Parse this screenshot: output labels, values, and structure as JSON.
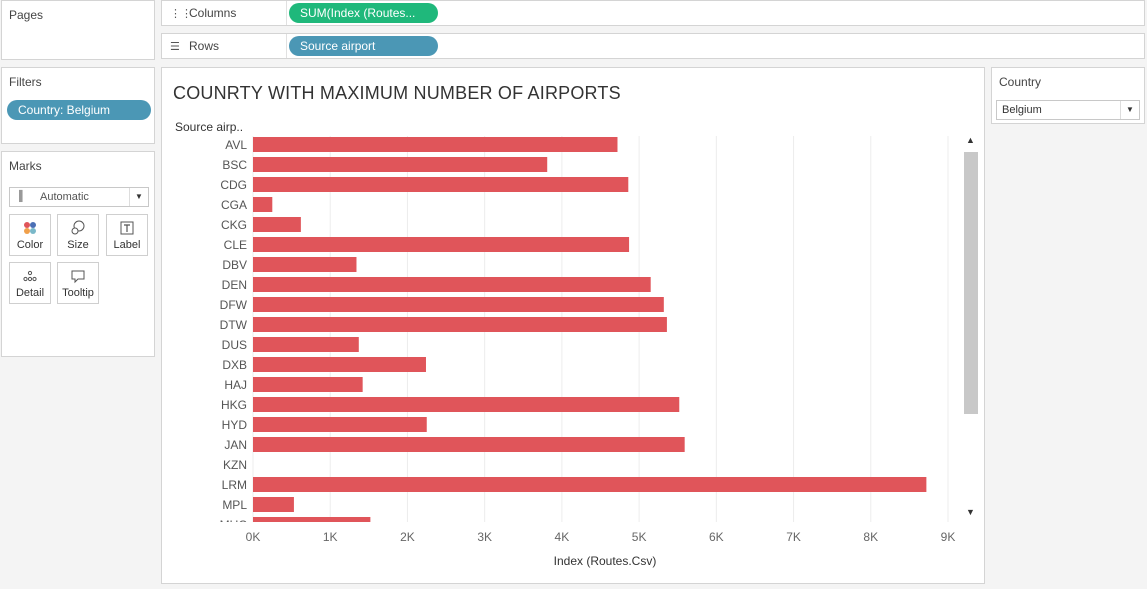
{
  "pages": {
    "title": "Pages"
  },
  "columns_shelf": {
    "label": "Columns",
    "pill": "SUM(Index (Routes..."
  },
  "rows_shelf": {
    "label": "Rows",
    "pill": "Source airport"
  },
  "filters": {
    "title": "Filters",
    "pill": "Country: Belgium"
  },
  "marks": {
    "title": "Marks",
    "type": "Automatic",
    "buttons": [
      {
        "label": "Color",
        "icon": "color-dots-icon"
      },
      {
        "label": "Size",
        "icon": "size-circles-icon"
      },
      {
        "label": "Label",
        "icon": "label-text-icon"
      },
      {
        "label": "Detail",
        "icon": "detail-dots-icon"
      },
      {
        "label": "Tooltip",
        "icon": "tooltip-bubble-icon"
      }
    ]
  },
  "country_filter": {
    "title": "Country",
    "value": "Belgium"
  },
  "colors": {
    "bar": "#e0555a",
    "columns_pill": "#1fb87b",
    "rows_pill": "#4b97b5",
    "filter_pill": "#4b97b5"
  },
  "chart_data": {
    "type": "bar",
    "orientation": "horizontal",
    "title": "COUNRTY WITH MAXIMUM NUMBER OF AIRPORTS",
    "row_header": "Source airp..",
    "xlabel": "Index (Routes.Csv)",
    "xlim": [
      0,
      9000
    ],
    "xticks": [
      "0K",
      "1K",
      "2K",
      "3K",
      "4K",
      "5K",
      "6K",
      "7K",
      "8K",
      "9K"
    ],
    "grid": true,
    "categories": [
      "AVL",
      "BSC",
      "CDG",
      "CGA",
      "CKG",
      "CLE",
      "DBV",
      "DEN",
      "DFW",
      "DTW",
      "DUS",
      "DXB",
      "HAJ",
      "HKG",
      "HYD",
      "JAN",
      "KZN",
      "LRM",
      "MPL",
      "MUC"
    ],
    "values": [
      4720,
      3810,
      4860,
      250,
      620,
      4870,
      1340,
      5150,
      5320,
      5360,
      1370,
      2240,
      1420,
      5520,
      2250,
      5590,
      0,
      8720,
      530,
      1520
    ]
  }
}
